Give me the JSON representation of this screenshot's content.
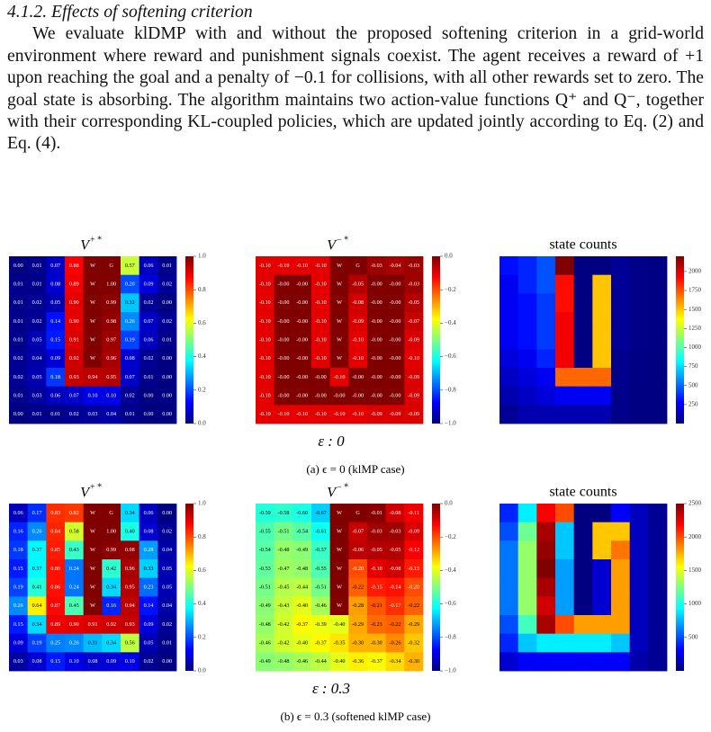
{
  "section": {
    "heading": "4.1.2. Effects of softening criterion",
    "paragraph": "We evaluate klDMP with and without the proposed softening criterion in a grid-world environment where reward and punishment signals coexist. The agent receives a reward of +1 upon reaching the goal and a penalty of −0.1 for collisions, with all other rewards set to zero. The goal state is absorbing. The algorithm maintains two action-value functions Q⁺ and Q⁻, together with their corresponding KL-coupled policies, which are updated jointly according to Eq. (2) and Eq. (4)."
  },
  "figures": [
    {
      "panels": [
        {
          "title": {
            "base": "V",
            "sup": "+ *"
          },
          "cells": [
            [
              "0.00",
              "0.01",
              "0.07",
              "0.88",
              "W",
              "G",
              "0.57",
              "0.06",
              "0.01"
            ],
            [
              "0.01",
              "0.01",
              "0.08",
              "0.89",
              "W",
              "1.00",
              "0.20",
              "0.09",
              "0.02"
            ],
            [
              "0.01",
              "0.02",
              "0.05",
              "0.90",
              "W",
              "0.99",
              "0.32",
              "0.02",
              "0.00"
            ],
            [
              "0.01",
              "0.02",
              "0.14",
              "0.90",
              "W",
              "0.98",
              "0.26",
              "0.07",
              "0.02"
            ],
            [
              "0.01",
              "0.05",
              "0.15",
              "0.91",
              "W",
              "0.97",
              "0.19",
              "0.06",
              "0.01"
            ],
            [
              "0.02",
              "0.04",
              "0.09",
              "0.92",
              "W",
              "0.96",
              "0.08",
              "0.02",
              "0.00"
            ],
            [
              "0.02",
              "0.05",
              "0.18",
              "0.93",
              "0.94",
              "0.95",
              "0.07",
              "0.01",
              "0.00"
            ],
            [
              "0.01",
              "0.03",
              "0.06",
              "0.07",
              "0.10",
              "0.10",
              "0.02",
              "0.00",
              "0.00"
            ],
            [
              "0.00",
              "0.01",
              "0.01",
              "0.02",
              "0.03",
              "0.04",
              "0.01",
              "0.00",
              "0.00"
            ]
          ],
          "colorbar": {
            "lim": [
              0,
              1
            ],
            "ticks": [
              {
                "value": 0,
                "label": "0.0"
              },
              {
                "value": 0.2,
                "label": "0.2"
              },
              {
                "value": 0.4,
                "label": "0.4"
              },
              {
                "value": 0.6,
                "label": "0.6"
              },
              {
                "value": 0.8,
                "label": "0.8"
              },
              {
                "value": 1,
                "label": "1.0"
              }
            ]
          }
        },
        {
          "title": {
            "base": "V",
            "sup": "− *"
          },
          "cells": [
            [
              "-0.10",
              "-0.10",
              "-0.10",
              "-0.10",
              "W",
              "G",
              "-0.03",
              "-0.04",
              "-0.03"
            ],
            [
              "-0.10",
              "-0.00",
              "-0.00",
              "-0.10",
              "W",
              "-0.05",
              "-0.00",
              "-0.00",
              "-0.03"
            ],
            [
              "-0.10",
              "-0.00",
              "-0.00",
              "-0.10",
              "W",
              "-0.08",
              "-0.00",
              "-0.00",
              "-0.05"
            ],
            [
              "-0.10",
              "-0.00",
              "-0.00",
              "-0.10",
              "W",
              "-0.09",
              "-0.00",
              "-0.00",
              "-0.07"
            ],
            [
              "-0.10",
              "-0.00",
              "-0.00",
              "-0.10",
              "W",
              "-0.10",
              "-0.00",
              "-0.00",
              "-0.09"
            ],
            [
              "-0.10",
              "-0.00",
              "-0.00",
              "-0.10",
              "W",
              "-0.10",
              "-0.00",
              "-0.00",
              "-0.10"
            ],
            [
              "-0.10",
              "-0.00",
              "-0.00",
              "-0.00",
              "-0.10",
              "-0.00",
              "-0.00",
              "-0.00",
              "-0.09"
            ],
            [
              "-0.10",
              "-0.00",
              "-0.00",
              "-0.00",
              "-0.00",
              "-0.00",
              "-0.00",
              "-0.00",
              "-0.09"
            ],
            [
              "-0.10",
              "-0.10",
              "-0.10",
              "-0.10",
              "-0.10",
              "-0.10",
              "-0.09",
              "-0.09",
              "-0.09"
            ]
          ],
          "colorbar": {
            "lim": [
              -1,
              0
            ],
            "ticks": [
              {
                "value": 0,
                "label": "0.0"
              },
              {
                "value": -0.2,
                "label": "−0.2"
              },
              {
                "value": -0.4,
                "label": "−0.4"
              },
              {
                "value": -0.6,
                "label": "−0.6"
              },
              {
                "value": -0.8,
                "label": "−0.8"
              },
              {
                "value": -1,
                "label": "−1.0"
              }
            ]
          }
        },
        {
          "title": "state counts",
          "counts": [
            [
              300,
              350,
              450,
              2200,
              0,
              0,
              50,
              20,
              10
            ],
            [
              250,
              350,
              450,
              1900,
              0,
              1500,
              50,
              20,
              10
            ],
            [
              250,
              300,
              400,
              1900,
              0,
              1500,
              50,
              20,
              10
            ],
            [
              250,
              300,
              400,
              1950,
              0,
              1500,
              50,
              20,
              10
            ],
            [
              250,
              300,
              400,
              1950,
              0,
              1500,
              50,
              20,
              10
            ],
            [
              200,
              250,
              350,
              1950,
              0,
              1500,
              30,
              10,
              5
            ],
            [
              150,
              200,
              250,
              1700,
              1700,
              1700,
              30,
              10,
              5
            ],
            [
              100,
              150,
              200,
              250,
              250,
              250,
              20,
              5,
              5
            ],
            [
              50,
              100,
              100,
              100,
              100,
              100,
              20,
              5,
              5
            ]
          ],
          "colorbar": {
            "lim": [
              0,
              2200
            ],
            "ticks": [
              250,
              500,
              750,
              1000,
              1250,
              1500,
              1750,
              2000
            ]
          }
        }
      ],
      "epsilon_label": "ε : 0",
      "caption": "(a) ϵ = 0 (klMP case)"
    },
    {
      "panels": [
        {
          "title": {
            "base": "V",
            "sup": "+ *"
          },
          "cells": [
            [
              "0.06",
              "0.17",
              "0.83",
              "0.82",
              "W",
              "G",
              "0.34",
              "0.06",
              "0.00"
            ],
            [
              "0.16",
              "0.26",
              "0.84",
              "0.58",
              "W",
              "1.00",
              "0.40",
              "0.08",
              "0.02"
            ],
            [
              "0.18",
              "0.37",
              "0.85",
              "0.43",
              "W",
              "0.99",
              "0.98",
              "0.28",
              "0.04"
            ],
            [
              "0.15",
              "0.37",
              "0.86",
              "0.24",
              "W",
              "0.42",
              "0.96",
              "0.33",
              "0.05"
            ],
            [
              "0.19",
              "0.41",
              "0.86",
              "0.24",
              "W",
              "0.34",
              "0.95",
              "0.23",
              "0.05"
            ],
            [
              "0.26",
              "0.64",
              "0.87",
              "0.45",
              "W",
              "0.16",
              "0.94",
              "0.14",
              "0.04"
            ],
            [
              "0.15",
              "0.34",
              "0.89",
              "0.90",
              "0.91",
              "0.92",
              "0.93",
              "0.09",
              "0.02"
            ],
            [
              "0.09",
              "0.19",
              "0.25",
              "0.26",
              "0.31",
              "0.34",
              "0.56",
              "0.05",
              "0.01"
            ],
            [
              "0.03",
              "0.08",
              "0.15",
              "0.10",
              "0.08",
              "0.09",
              "0.10",
              "0.02",
              "0.00"
            ]
          ],
          "colorbar": {
            "lim": [
              0,
              1
            ],
            "ticks": [
              {
                "value": 0,
                "label": "0.0"
              },
              {
                "value": 0.2,
                "label": "0.2"
              },
              {
                "value": 0.4,
                "label": "0.4"
              },
              {
                "value": 0.6,
                "label": "0.6"
              },
              {
                "value": 0.8,
                "label": "0.8"
              },
              {
                "value": 1,
                "label": "1.0"
              }
            ]
          }
        },
        {
          "title": {
            "base": "V",
            "sup": "− *"
          },
          "cells": [
            [
              "-0.59",
              "-0.58",
              "-0.60",
              "-0.67",
              "W",
              "G",
              "-0.01",
              "-0.08",
              "-0.11"
            ],
            [
              "-0.55",
              "-0.51",
              "-0.54",
              "-0.61",
              "W",
              "-0.07",
              "-0.03",
              "-0.03",
              "-0.09"
            ],
            [
              "-0.54",
              "-0.48",
              "-0.49",
              "-0.57",
              "W",
              "-0.06",
              "-0.05",
              "-0.05",
              "-0.12"
            ],
            [
              "-0.53",
              "-0.47",
              "-0.48",
              "-0.55",
              "W",
              "-0.20",
              "-0.10",
              "-0.08",
              "-0.15"
            ],
            [
              "-0.51",
              "-0.45",
              "-0.44",
              "-0.51",
              "W",
              "-0.22",
              "-0.15",
              "-0.14",
              "-0.20"
            ],
            [
              "-0.49",
              "-0.43",
              "-0.40",
              "-0.46",
              "W",
              "-0.28",
              "-0.21",
              "-0.17",
              "-0.22"
            ],
            [
              "-0.48",
              "-0.42",
              "-0.37",
              "-0.39",
              "-0.40",
              "-0.29",
              "-0.23",
              "-0.22",
              "-0.29"
            ],
            [
              "-0.46",
              "-0.42",
              "-0.40",
              "-0.37",
              "-0.35",
              "-0.30",
              "-0.30",
              "-0.26",
              "-0.32"
            ],
            [
              "-0.49",
              "-0.48",
              "-0.46",
              "-0.44",
              "-0.40",
              "-0.36",
              "-0.37",
              "-0.34",
              "-0.30"
            ]
          ],
          "colorbar": {
            "lim": [
              -1,
              0
            ],
            "ticks": [
              {
                "value": 0,
                "label": "0.0"
              },
              {
                "value": -0.2,
                "label": "−0.2"
              },
              {
                "value": -0.4,
                "label": "−0.4"
              },
              {
                "value": -0.6,
                "label": "−0.6"
              },
              {
                "value": -0.8,
                "label": "−0.8"
              },
              {
                "value": -1,
                "label": "−1.0"
              }
            ]
          }
        },
        {
          "title": "state counts",
          "counts": [
            [
              400,
              900,
              2200,
              2000,
              0,
              0,
              300,
              150,
              50
            ],
            [
              500,
              1200,
              2400,
              800,
              0,
              1700,
              1700,
              150,
              50
            ],
            [
              600,
              1300,
              2450,
              800,
              0,
              1700,
              1900,
              150,
              50
            ],
            [
              600,
              1300,
              2500,
              700,
              0,
              200,
              1800,
              150,
              50
            ],
            [
              600,
              1300,
              2400,
              700,
              0,
              200,
              1800,
              150,
              50
            ],
            [
              600,
              1300,
              2300,
              700,
              0,
              200,
              1800,
              150,
              50
            ],
            [
              500,
              1100,
              2400,
              2000,
              1800,
              1800,
              1800,
              150,
              50
            ],
            [
              400,
              800,
              900,
              900,
              900,
              900,
              800,
              150,
              50
            ],
            [
              200,
              300,
              300,
              300,
              300,
              300,
              300,
              100,
              50
            ]
          ],
          "colorbar": {
            "lim": [
              0,
              2500
            ],
            "ticks": [
              500,
              1000,
              1500,
              2000,
              2500
            ]
          }
        }
      ],
      "epsilon_label": "ε : 0.3",
      "caption": "(b) ϵ = 0.3 (softened klMP case)"
    }
  ]
}
